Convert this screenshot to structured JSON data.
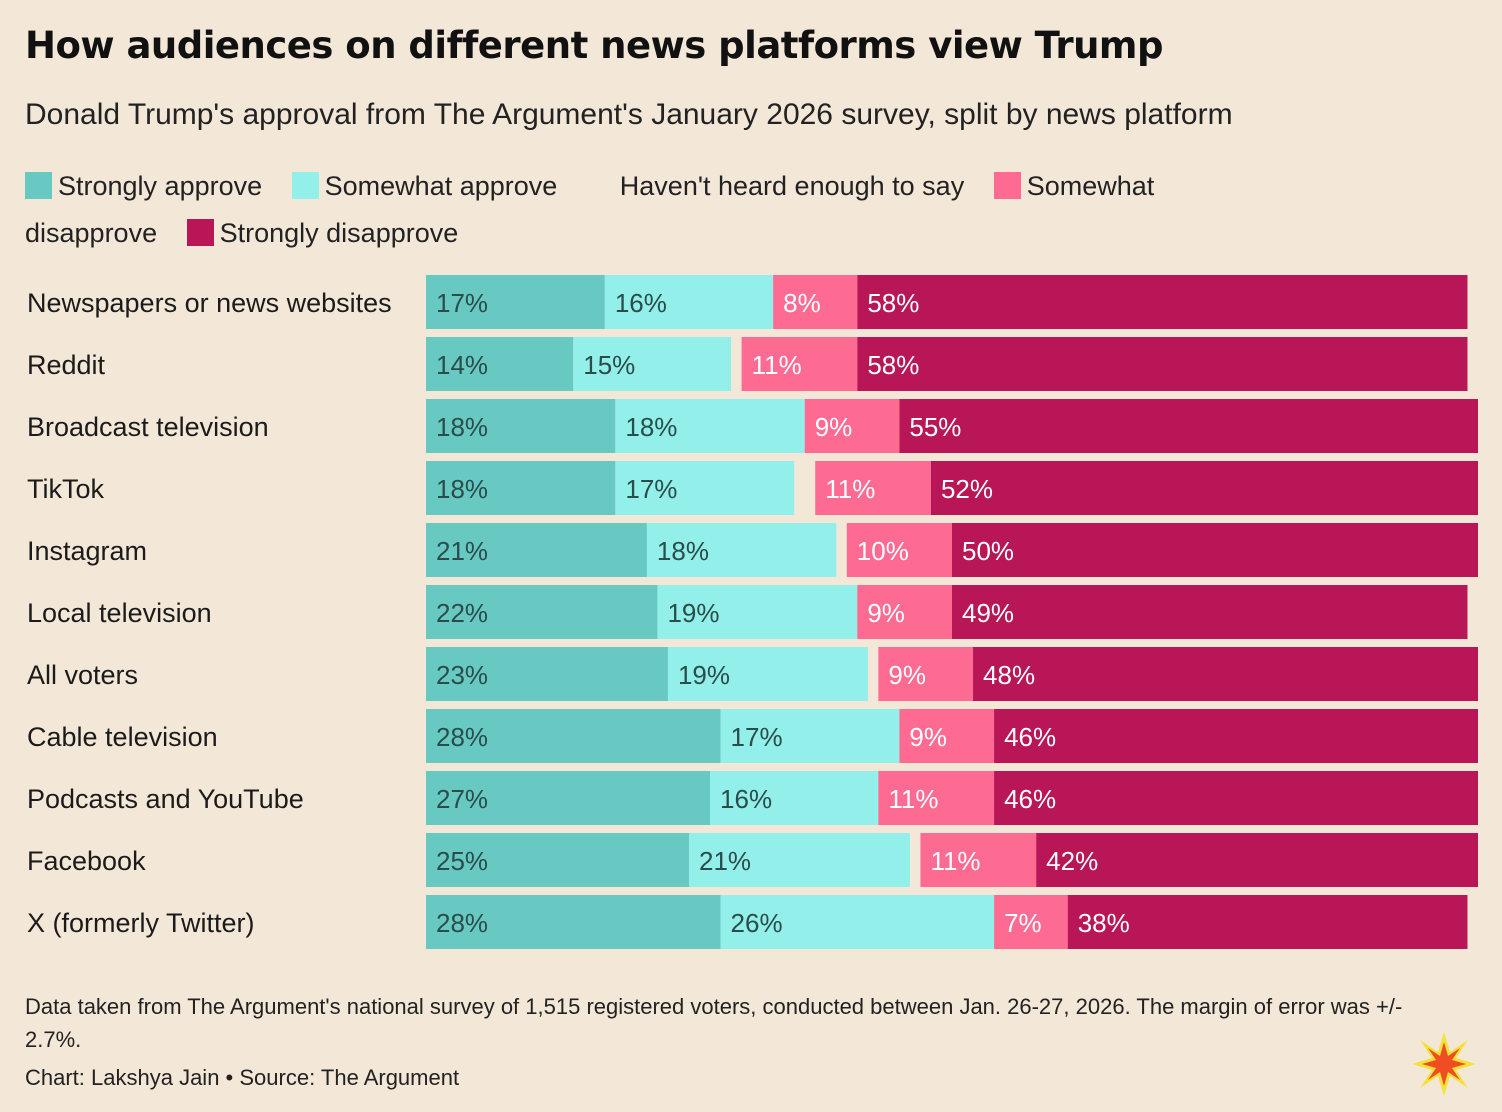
{
  "title": "How audiences on different news platforms view Trump",
  "subtitle": "Donald Trump's approval from The Argument's January 2026 survey, split by news platform",
  "legend": [
    {
      "label": "Strongly approve",
      "color": "#68c9c3"
    },
    {
      "label": "Somewhat approve",
      "color": "#92efe9"
    },
    {
      "label": "Haven't heard enough to say",
      "color": ""
    },
    {
      "label": "Somewhat disapprove",
      "color": "#fd6b93"
    },
    {
      "label": "Strongly disapprove",
      "color": "#b81656"
    }
  ],
  "footnote": "Data taken from The Argument's national survey of 1,515 registered voters, conducted between Jan. 26-27, 2026. The margin of error was +/- 2.7%.",
  "credit": "Chart: Lakshya Jain • Source: The Argument",
  "chart_data": {
    "type": "bar",
    "orientation": "horizontal",
    "stacked": true,
    "categories": [
      "Newspapers or news websites",
      "Reddit",
      "Broadcast television",
      "TikTok",
      "Instagram",
      "Local television",
      "All voters",
      "Cable television",
      "Podcasts and YouTube",
      "Facebook",
      "X (formerly Twitter)"
    ],
    "series": [
      {
        "name": "Strongly approve",
        "color": "#68c9c3",
        "label_color": "#2a4d4b",
        "values": [
          17,
          14,
          18,
          18,
          21,
          22,
          23,
          28,
          27,
          25,
          28
        ]
      },
      {
        "name": "Somewhat approve",
        "color": "#92efe9",
        "label_color": "#2a4d4b",
        "values": [
          16,
          15,
          18,
          17,
          18,
          19,
          19,
          17,
          16,
          21,
          26
        ]
      },
      {
        "name": "Haven't heard enough to say",
        "color": "",
        "label_color": "",
        "values": [
          0,
          1,
          0,
          2,
          1,
          0,
          1,
          0,
          0,
          1,
          0
        ]
      },
      {
        "name": "Somewhat disapprove",
        "color": "#fd6b93",
        "label_color": "#ffffff",
        "values": [
          8,
          11,
          9,
          11,
          10,
          9,
          9,
          9,
          11,
          11,
          7
        ]
      },
      {
        "name": "Strongly disapprove",
        "color": "#b81656",
        "label_color": "#ffffff",
        "values": [
          58,
          58,
          55,
          52,
          50,
          49,
          48,
          46,
          46,
          42,
          38
        ]
      }
    ],
    "data_labels": [
      [
        "17%",
        "16%",
        "",
        "8%",
        "58%"
      ],
      [
        "14%",
        "15%",
        "",
        "11%",
        "58%"
      ],
      [
        "18%",
        "18%",
        "",
        "9%",
        "55%"
      ],
      [
        "18%",
        "17%",
        "",
        "11%",
        "52%"
      ],
      [
        "21%",
        "18%",
        "",
        "10%",
        "50%"
      ],
      [
        "22%",
        "19%",
        "",
        "9%",
        "49%"
      ],
      [
        "23%",
        "19%",
        "",
        "9%",
        "48%"
      ],
      [
        "28%",
        "17%",
        "",
        "9%",
        "46%"
      ],
      [
        "27%",
        "16%",
        "",
        "11%",
        "46%"
      ],
      [
        "25%",
        "21%",
        "",
        "11%",
        "42%"
      ],
      [
        "28%",
        "26%",
        "",
        "7%",
        "38%"
      ]
    ],
    "xlim": [
      0,
      100
    ],
    "grid": false,
    "legend_position": "top"
  }
}
